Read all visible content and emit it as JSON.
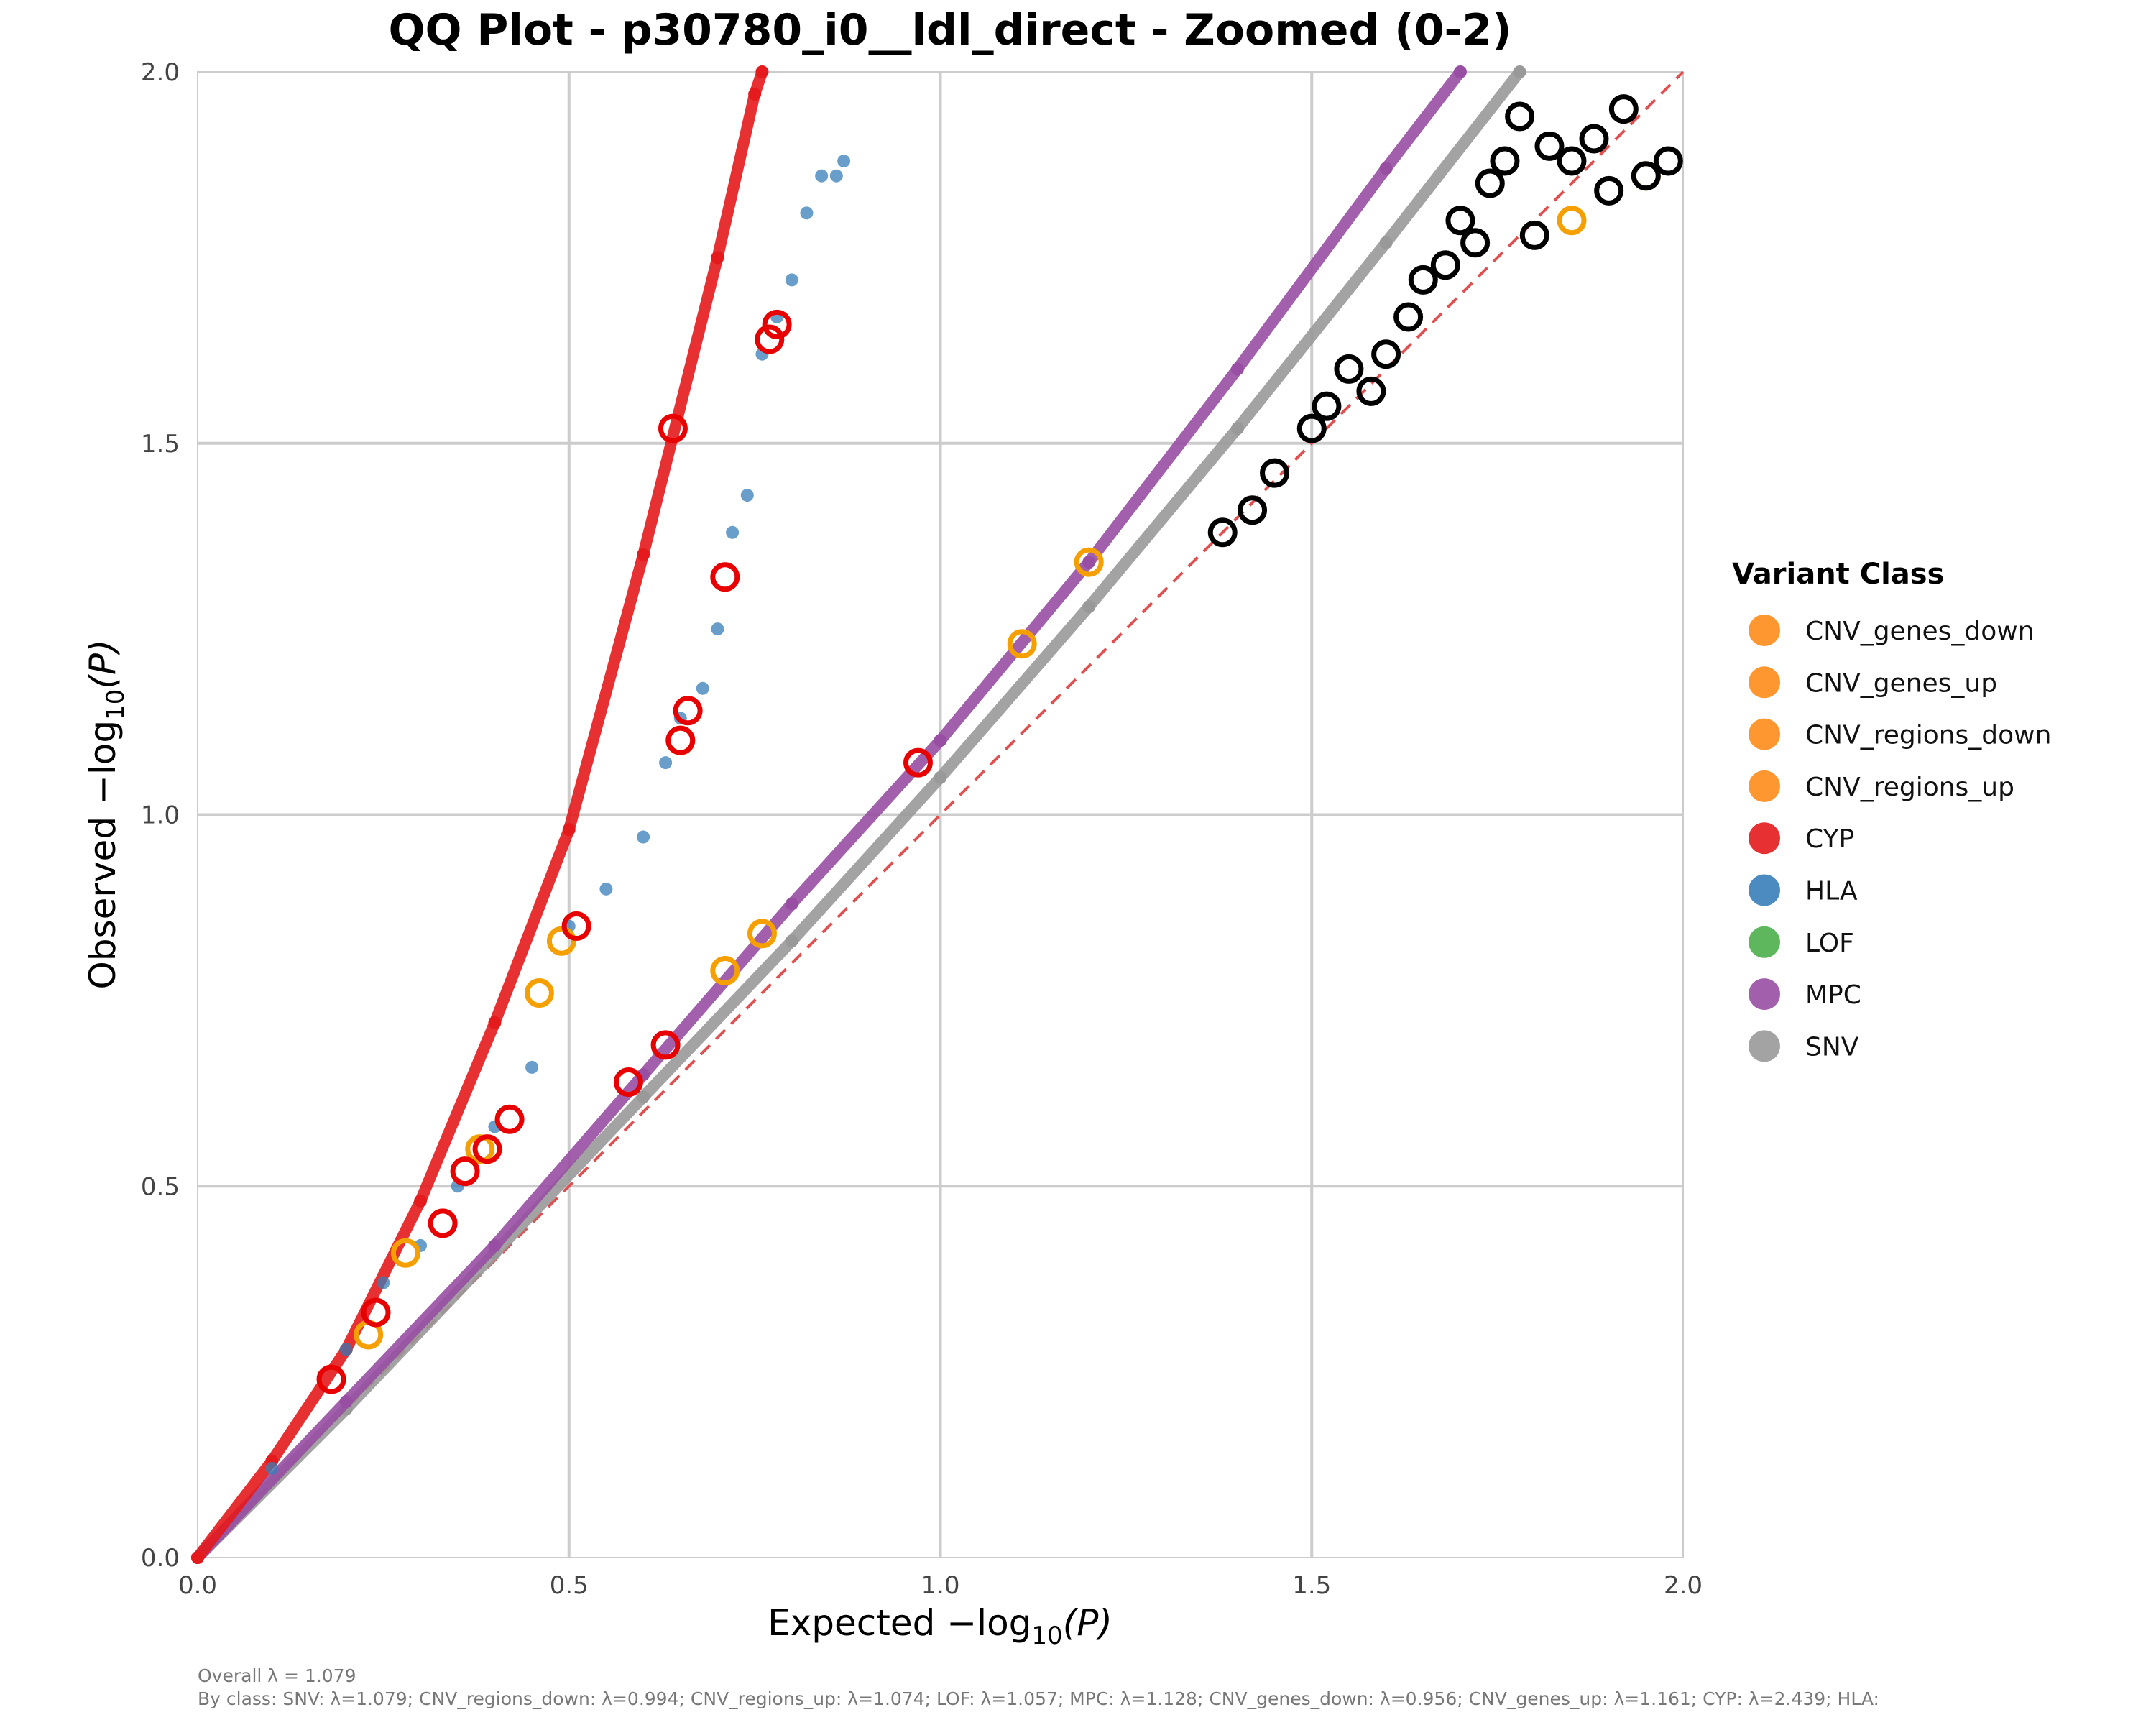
{
  "chart_data": {
    "type": "scatter",
    "title": "QQ Plot - p30780_i0__ldl_direct - Zoomed (0-2)",
    "xlabel_prefix": "Expected −log",
    "xlabel_sub": "10",
    "xlabel_suffix": "(P)",
    "ylabel_prefix": "Observed −log",
    "ylabel_sub": "10",
    "ylabel_suffix": "(P)",
    "xlim": [
      0,
      2
    ],
    "ylim": [
      0,
      2
    ],
    "grid": true,
    "x_ticks": [
      "0.0",
      "0.5",
      "1.0",
      "1.5",
      "2.0"
    ],
    "y_ticks": [
      "0.0",
      "0.5",
      "1.0",
      "1.5",
      "2.0"
    ],
    "x_tick_values": [
      0,
      0.5,
      1.0,
      1.5,
      2.0
    ],
    "y_tick_values": [
      0,
      0.5,
      1.0,
      1.5,
      2.0
    ],
    "reference_line": {
      "from": [
        0,
        0
      ],
      "to": [
        2,
        2
      ],
      "color": "#e05050",
      "style": "dashed"
    },
    "legend": {
      "title": "Variant Class",
      "placement": "right",
      "entries": [
        {
          "label": "CNV_genes_down",
          "color": "#ff8c1a"
        },
        {
          "label": "CNV_genes_up",
          "color": "#ff8c1a"
        },
        {
          "label": "CNV_regions_down",
          "color": "#ff8c1a"
        },
        {
          "label": "CNV_regions_up",
          "color": "#ff8c1a"
        },
        {
          "label": "CYP",
          "color": "#e41a1c"
        },
        {
          "label": "HLA",
          "color": "#377eb8"
        },
        {
          "label": "LOF",
          "color": "#4daf4a"
        },
        {
          "label": "MPC",
          "color": "#984ea3"
        },
        {
          "label": "SNV",
          "color": "#999999"
        }
      ]
    },
    "series": [
      {
        "name": "SNV",
        "color": "#999999",
        "style": "dense-line",
        "x": [
          0,
          0.2,
          0.4,
          0.6,
          0.8,
          1.0,
          1.2,
          1.4,
          1.6,
          1.78
        ],
        "y": [
          0,
          0.2,
          0.41,
          0.62,
          0.83,
          1.05,
          1.28,
          1.52,
          1.77,
          2.0
        ]
      },
      {
        "name": "MPC",
        "color": "#984ea3",
        "style": "dense-line",
        "x": [
          0,
          0.2,
          0.4,
          0.6,
          0.8,
          1.0,
          1.2,
          1.4,
          1.6,
          1.7
        ],
        "y": [
          0,
          0.21,
          0.42,
          0.65,
          0.88,
          1.1,
          1.34,
          1.6,
          1.87,
          2.0
        ]
      },
      {
        "name": "CYP",
        "color": "#e41a1c",
        "style": "dense-line",
        "x": [
          0,
          0.1,
          0.2,
          0.3,
          0.4,
          0.5,
          0.6,
          0.7,
          0.75,
          0.76
        ],
        "y": [
          0,
          0.13,
          0.28,
          0.48,
          0.72,
          0.98,
          1.35,
          1.75,
          1.97,
          2.0
        ]
      },
      {
        "name": "HLA",
        "color": "#377eb8",
        "style": "points",
        "x": [
          0.1,
          0.2,
          0.25,
          0.3,
          0.35,
          0.4,
          0.45,
          0.5,
          0.55,
          0.6,
          0.63,
          0.65,
          0.68,
          0.7,
          0.72,
          0.74,
          0.76,
          0.78,
          0.8,
          0.82,
          0.84,
          0.86,
          0.87
        ],
        "y": [
          0.12,
          0.28,
          0.37,
          0.42,
          0.5,
          0.58,
          0.66,
          0.85,
          0.9,
          0.97,
          1.07,
          1.13,
          1.17,
          1.25,
          1.38,
          1.43,
          1.62,
          1.67,
          1.72,
          1.81,
          1.86,
          1.86,
          1.88
        ]
      },
      {
        "name": "CNV (orange rings)",
        "color": "#f5a000",
        "style": "rings",
        "x": [
          0.23,
          0.28,
          0.38,
          0.46,
          0.49,
          0.65,
          0.71,
          0.76,
          1.11,
          1.2,
          1.85,
          1.95
        ],
        "y": [
          0.3,
          0.41,
          0.55,
          0.76,
          0.83,
          1.1,
          0.79,
          0.84,
          1.23,
          1.34,
          1.8,
          1.86
        ]
      },
      {
        "name": "CYP (red rings)",
        "color": "#e80000",
        "style": "rings",
        "x": [
          0.18,
          0.24,
          0.33,
          0.36,
          0.39,
          0.42,
          0.51,
          0.58,
          0.63,
          0.64,
          0.65,
          0.66,
          0.71,
          0.77,
          0.78,
          0.97
        ],
        "y": [
          0.24,
          0.33,
          0.45,
          0.52,
          0.55,
          0.59,
          0.85,
          0.64,
          0.69,
          1.52,
          1.1,
          1.14,
          1.32,
          1.64,
          1.66,
          1.07
        ]
      },
      {
        "name": "Top hits (black rings)",
        "color": "#000000",
        "style": "rings",
        "x": [
          1.38,
          1.42,
          1.45,
          1.5,
          1.52,
          1.55,
          1.58,
          1.6,
          1.63,
          1.65,
          1.68,
          1.7,
          1.72,
          1.74,
          1.76,
          1.78,
          1.8,
          1.82,
          1.85,
          1.88,
          1.9,
          1.92,
          1.95,
          1.98
        ],
        "y": [
          1.38,
          1.41,
          1.46,
          1.52,
          1.55,
          1.6,
          1.57,
          1.62,
          1.67,
          1.72,
          1.74,
          1.8,
          1.77,
          1.85,
          1.88,
          1.94,
          1.78,
          1.9,
          1.88,
          1.91,
          1.84,
          1.95,
          1.86,
          1.88
        ]
      }
    ],
    "footnote_lines": [
      "Overall λ = 1.079",
      "By class: SNV: λ=1.079; CNV_regions_down: λ=0.994; CNV_regions_up: λ=1.074; LOF: λ=1.057; MPC: λ=1.128; CNV_genes_down: λ=0.956; CNV_genes_up: λ=1.161; CYP: λ=2.439; HLA:"
    ]
  }
}
